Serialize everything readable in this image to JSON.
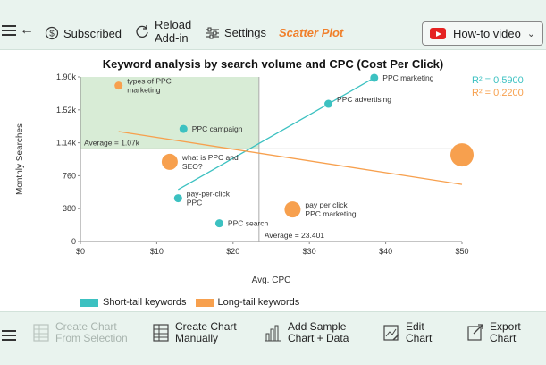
{
  "toolbar": {
    "subscribed_label": "Subscribed",
    "reload_label_line1": "Reload",
    "reload_label_line2": "Add-in",
    "settings_label": "Settings",
    "chart_type_label": "Scatter Plot",
    "howto_label": "How-to video"
  },
  "bottom_toolbar": {
    "create_selection_line1": "Create Chart",
    "create_selection_line2": "From Selection",
    "create_manual_line1": "Create Chart",
    "create_manual_line2": "Manually",
    "add_sample_line1": "Add Sample",
    "add_sample_line2": "Chart + Data",
    "edit_line1": "Edit",
    "edit_line2": "Chart",
    "export_line1": "Export",
    "export_line2": "Chart"
  },
  "colors": {
    "short_tail": "#3cc1c1",
    "long_tail": "#f7a04e",
    "quadrant": "#d8ecd6",
    "toolbar_bg": "#e9f3ee",
    "accent": "#f07f2a"
  },
  "chart_data": {
    "type": "scatter",
    "title": "Keyword analysis by search volume and CPC (Cost Per Click)",
    "xlabel": "Avg. CPC",
    "ylabel": "Monthly Searches",
    "xlim": [
      0,
      50
    ],
    "ylim": [
      0,
      1900
    ],
    "x_ticks": [
      "$0",
      "$10",
      "$20",
      "$30",
      "$40",
      "$50"
    ],
    "y_ticks": [
      "0",
      "380",
      "760",
      "1.14k",
      "1.52k",
      "1.90k"
    ],
    "legend_position": "bottom-left",
    "average_x_label": "Average = 23.401",
    "average_y_label": "Average = 1.07k",
    "average_x": 23.401,
    "average_y": 1070,
    "series": [
      {
        "name": "Short-tail keywords",
        "r2_label": "R² = 0.5900",
        "points": [
          {
            "label": "PPC marketing",
            "x": 38.5,
            "y": 1890,
            "size": 1
          },
          {
            "label": "PPC advertising",
            "x": 32.5,
            "y": 1590,
            "size": 1
          },
          {
            "label": "PPC campaign",
            "x": 13.5,
            "y": 1300,
            "size": 1
          },
          {
            "label": "pay-per-click PPC",
            "x": 12.8,
            "y": 500,
            "size": 1
          },
          {
            "label": "PPC search",
            "x": 18.2,
            "y": 210,
            "size": 1
          }
        ],
        "trend": {
          "x1": 12.8,
          "y1": 600,
          "x2": 38.5,
          "y2": 1890
        }
      },
      {
        "name": "Long-tail keywords",
        "r2_label": "R² = 0.2200",
        "points": [
          {
            "label": "types of PPC marketing",
            "x": 5,
            "y": 1800,
            "size": 1
          },
          {
            "label": "what is PPC and SEO?",
            "x": 11.7,
            "y": 920,
            "size": 2
          },
          {
            "label": "pay per click PPC marketing",
            "x": 27.8,
            "y": 370,
            "size": 2
          },
          {
            "label": "",
            "x": 50,
            "y": 1000,
            "size": 3
          }
        ],
        "trend": {
          "x1": 5,
          "y1": 1270,
          "x2": 50,
          "y2": 660
        }
      }
    ]
  }
}
